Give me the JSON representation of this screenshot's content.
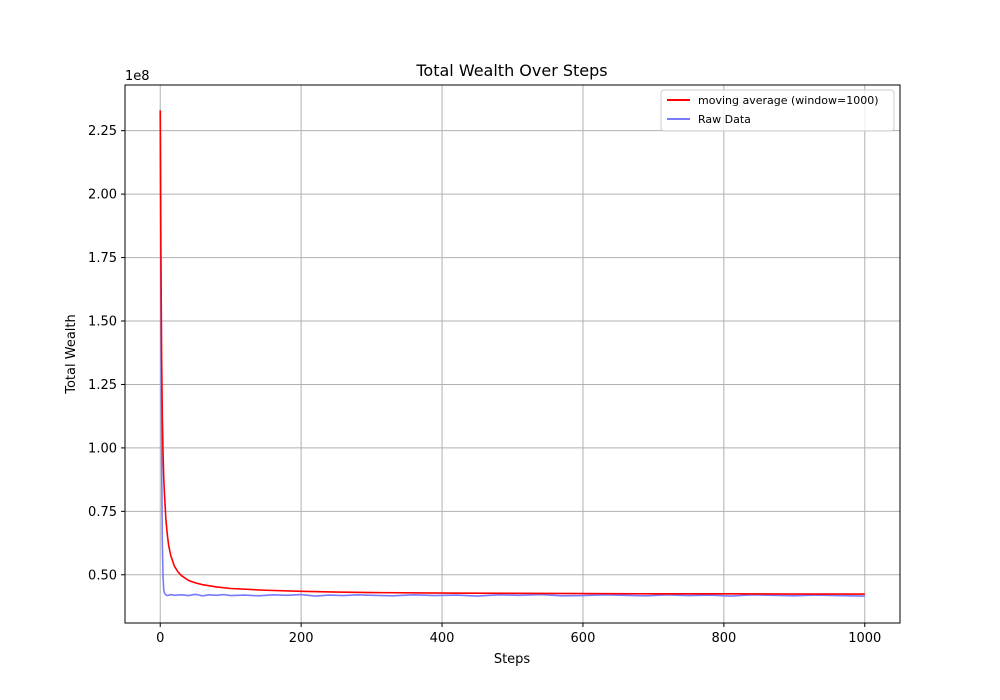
{
  "chart_data": {
    "type": "line",
    "title": "Total Wealth Over Steps",
    "xlabel": "Steps",
    "ylabel": "Total Wealth",
    "y_offset_label": "1e8",
    "xlim": [
      -50,
      1050
    ],
    "ylim": [
      0.31,
      2.43
    ],
    "x_ticks": [
      0,
      200,
      400,
      600,
      800,
      1000
    ],
    "y_ticks": [
      0.5,
      0.75,
      1.0,
      1.25,
      1.5,
      1.75,
      2.0,
      2.25
    ],
    "y_tick_labels": [
      "0.50",
      "0.75",
      "1.00",
      "1.25",
      "1.50",
      "1.75",
      "2.00",
      "2.25"
    ],
    "x_tick_labels": [
      "0",
      "200",
      "400",
      "600",
      "800",
      "1000"
    ],
    "grid": true,
    "legend_position": "top-right",
    "series": [
      {
        "name": "moving average (window=1000)",
        "color": "#ff0000",
        "x": [
          0,
          1,
          2,
          3,
          4,
          5,
          6,
          8,
          10,
          12,
          15,
          20,
          25,
          30,
          40,
          50,
          60,
          80,
          100,
          150,
          200,
          250,
          300,
          400,
          500,
          600,
          700,
          800,
          900,
          1000
        ],
        "y": [
          2.33,
          1.75,
          1.35,
          1.12,
          0.98,
          0.88,
          0.82,
          0.72,
          0.66,
          0.615,
          0.575,
          0.535,
          0.512,
          0.497,
          0.478,
          0.468,
          0.461,
          0.452,
          0.446,
          0.439,
          0.435,
          0.432,
          0.43,
          0.428,
          0.427,
          0.426,
          0.425,
          0.425,
          0.424,
          0.424
        ]
      },
      {
        "name": "Raw Data",
        "color": "#7a7aff",
        "x": [
          0,
          1,
          2,
          3,
          4,
          5,
          6,
          7,
          8,
          10,
          15,
          20,
          30,
          40,
          50,
          60,
          70,
          80,
          90,
          100,
          120,
          140,
          160,
          180,
          200,
          220,
          240,
          260,
          280,
          300,
          330,
          360,
          390,
          420,
          450,
          480,
          510,
          540,
          570,
          600,
          630,
          660,
          690,
          720,
          750,
          780,
          810,
          840,
          870,
          900,
          930,
          960,
          1000
        ],
        "y": [
          2.33,
          1.6,
          0.95,
          0.62,
          0.49,
          0.44,
          0.428,
          0.424,
          0.421,
          0.418,
          0.422,
          0.419,
          0.421,
          0.418,
          0.423,
          0.417,
          0.421,
          0.419,
          0.422,
          0.418,
          0.42,
          0.417,
          0.421,
          0.419,
          0.422,
          0.416,
          0.42,
          0.418,
          0.421,
          0.419,
          0.417,
          0.421,
          0.418,
          0.42,
          0.416,
          0.421,
          0.419,
          0.422,
          0.417,
          0.418,
          0.421,
          0.419,
          0.417,
          0.421,
          0.418,
          0.42,
          0.416,
          0.421,
          0.419,
          0.417,
          0.42,
          0.418,
          0.416
        ]
      }
    ]
  }
}
